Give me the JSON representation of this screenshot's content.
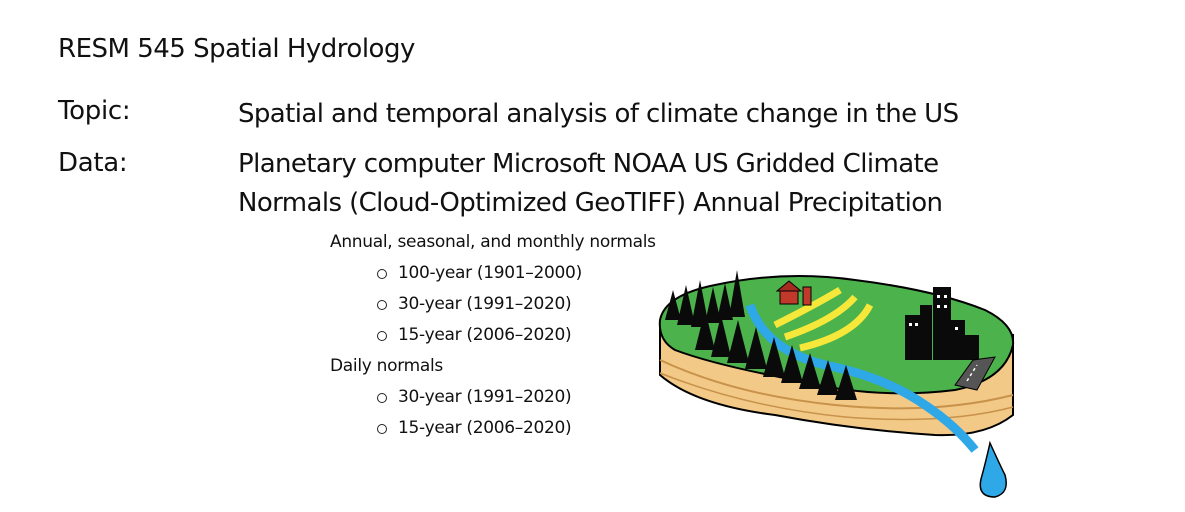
{
  "slide": {
    "title": "RESM 545 Spatial Hydrology",
    "topic_label": "Topic:",
    "topic_value": "Spatial and temporal analysis of climate change in the US",
    "data_label": "Data:",
    "data_value_line1": "Planetary computer Microsoft NOAA US Gridded Climate",
    "data_value_line2": "Normals (Cloud-Optimized GeoTIFF) Annual Precipitation"
  },
  "normals": {
    "group1": {
      "heading": "Annual, seasonal, and monthly normals",
      "items": [
        "100-year (1901–2000)",
        "30-year (1991–2020)",
        "15-year (2006–2020)"
      ]
    },
    "group2": {
      "heading": "Daily normals",
      "items": [
        "30-year (1991–2020)",
        "15-year (2006–2020)"
      ]
    }
  },
  "illustration": {
    "icon": "watershed-landscape-icon",
    "colors": {
      "grass": "#4cb24c",
      "soil": "#f2c987",
      "water": "#2fa8e8",
      "fields": "#f5e83a",
      "barn": "#c0392b"
    }
  }
}
